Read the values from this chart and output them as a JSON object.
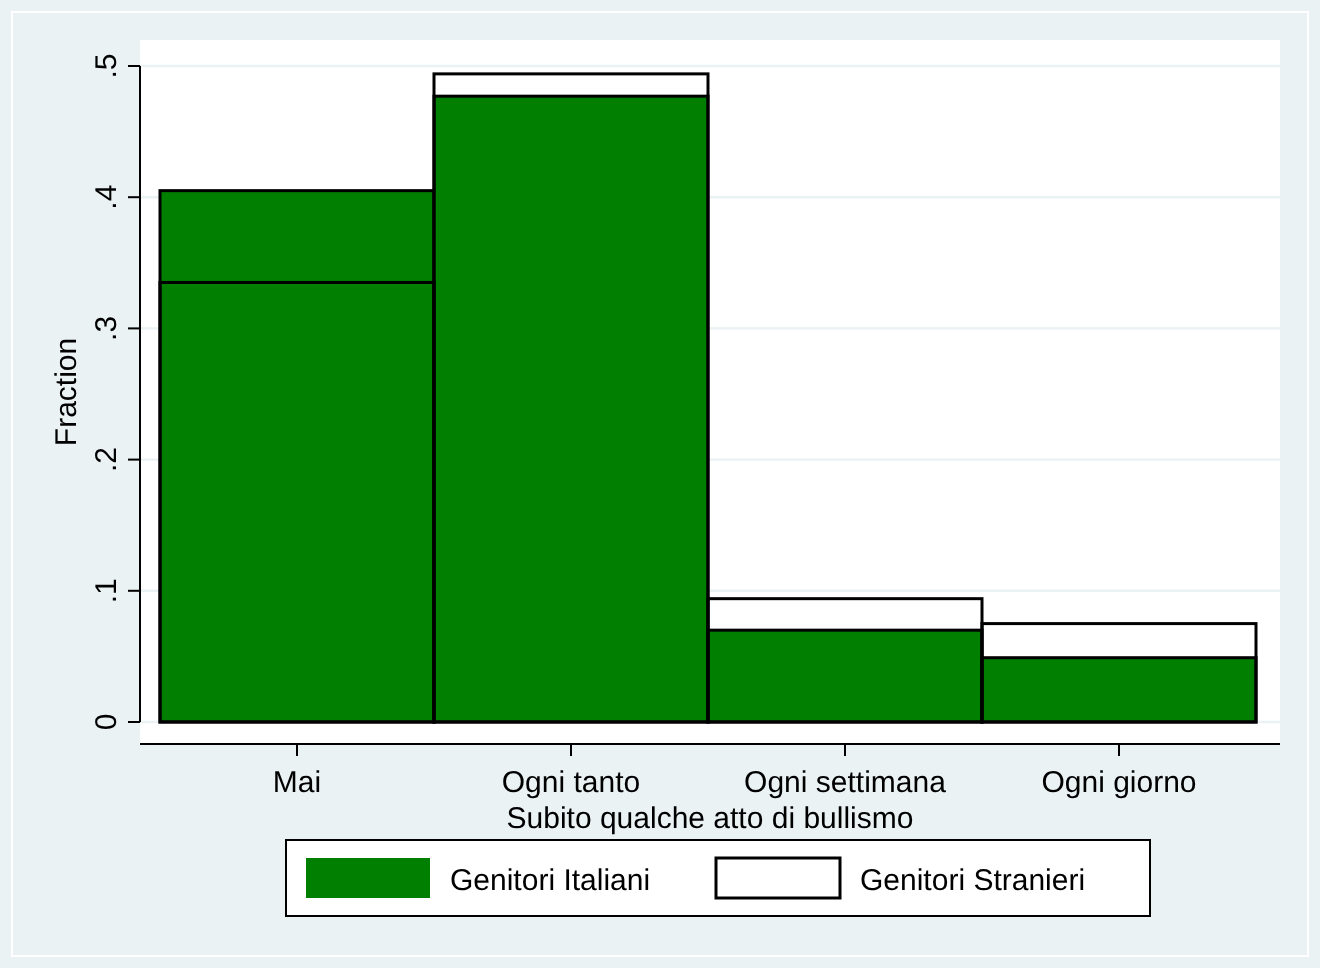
{
  "chart_data": {
    "type": "bar",
    "xlabel": "Subito qualche atto di bullismo",
    "ylabel": "Fraction",
    "categories": [
      "Mai",
      "Ogni tanto",
      "Ogni settimana",
      "Ogni giorno"
    ],
    "series": [
      {
        "name": "Genitori Italiani",
        "color": "#007f00",
        "values": [
          0.405,
          0.477,
          0.07,
          0.049
        ]
      },
      {
        "name": "Genitori Stranieri",
        "color": "#000000",
        "values": [
          0.335,
          0.494,
          0.094,
          0.075
        ]
      }
    ],
    "ylim": [
      0,
      0.5
    ],
    "yticks": [
      {
        "value": 0,
        "label": "0"
      },
      {
        "value": 0.1,
        "label": ".1"
      },
      {
        "value": 0.2,
        "label": ".2"
      },
      {
        "value": 0.3,
        "label": ".3"
      },
      {
        "value": 0.4,
        "label": ".4"
      },
      {
        "value": 0.5,
        "label": ".5"
      }
    ],
    "grid": "y",
    "legend": "bottom"
  }
}
